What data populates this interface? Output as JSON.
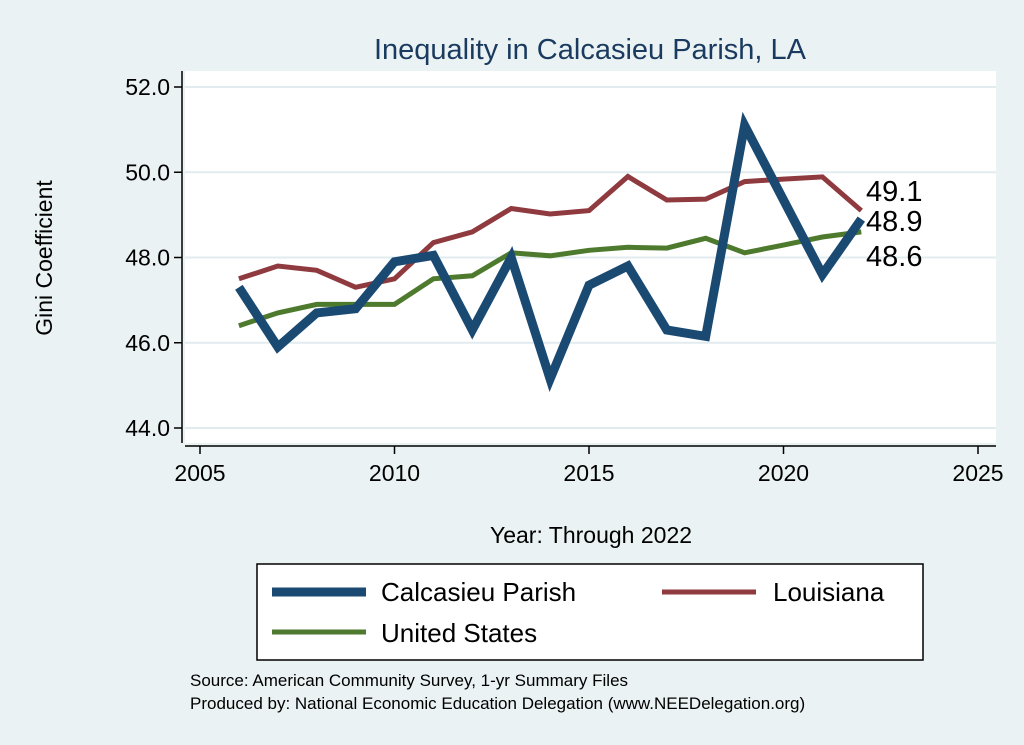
{
  "chart_data": {
    "type": "line",
    "title": "Inequality in Calcasieu Parish, LA",
    "xlabel": "Year: Through 2022",
    "ylabel": "Gini Coefficient",
    "xlim": [
      2005,
      2025
    ],
    "ylim": [
      44,
      52
    ],
    "xticks": [
      2005,
      2010,
      2015,
      2020,
      2025
    ],
    "xtick_labels": [
      "2005",
      "2010",
      "2015",
      "2020",
      "2025"
    ],
    "yticks": [
      44,
      46,
      48,
      50,
      52
    ],
    "ytick_labels": [
      "44.0",
      "46.0",
      "48.0",
      "50.0",
      "52.0"
    ],
    "grid": true,
    "x": [
      2006,
      2007,
      2008,
      2009,
      2010,
      2011,
      2012,
      2013,
      2014,
      2015,
      2016,
      2017,
      2018,
      2019,
      2020,
      2021,
      2022
    ],
    "series": [
      {
        "name": "Calcasieu Parish",
        "color": "#1a4a72",
        "values": [
          47.3,
          45.9,
          46.7,
          46.8,
          47.9,
          48.05,
          46.3,
          48.0,
          45.15,
          47.35,
          47.8,
          46.3,
          46.15,
          51.1,
          49.35,
          47.6,
          48.9
        ]
      },
      {
        "name": "Louisiana",
        "color": "#8f3a3f",
        "values": [
          47.5,
          47.8,
          47.7,
          47.3,
          47.5,
          48.35,
          48.6,
          49.15,
          49.02,
          49.1,
          49.9,
          49.35,
          49.37,
          49.78,
          49.84,
          49.89,
          49.1
        ]
      },
      {
        "name": "United States",
        "color": "#4e7a2e",
        "values": [
          46.4,
          46.7,
          46.9,
          46.9,
          46.9,
          47.5,
          47.57,
          48.11,
          48.04,
          48.17,
          48.24,
          48.22,
          48.45,
          48.11,
          48.29,
          48.48,
          48.6
        ]
      }
    ],
    "end_labels": [
      "49.1",
      "48.9",
      "48.6"
    ],
    "legend": {
      "placement": "bottom",
      "entries": [
        "Calcasieu Parish",
        "Louisiana",
        "United States"
      ]
    },
    "notes": [
      "Source: American Community Survey, 1-yr Summary Files",
      "Produced by: National Economic Education Delegation (www.NEEDelegation.org)"
    ]
  }
}
